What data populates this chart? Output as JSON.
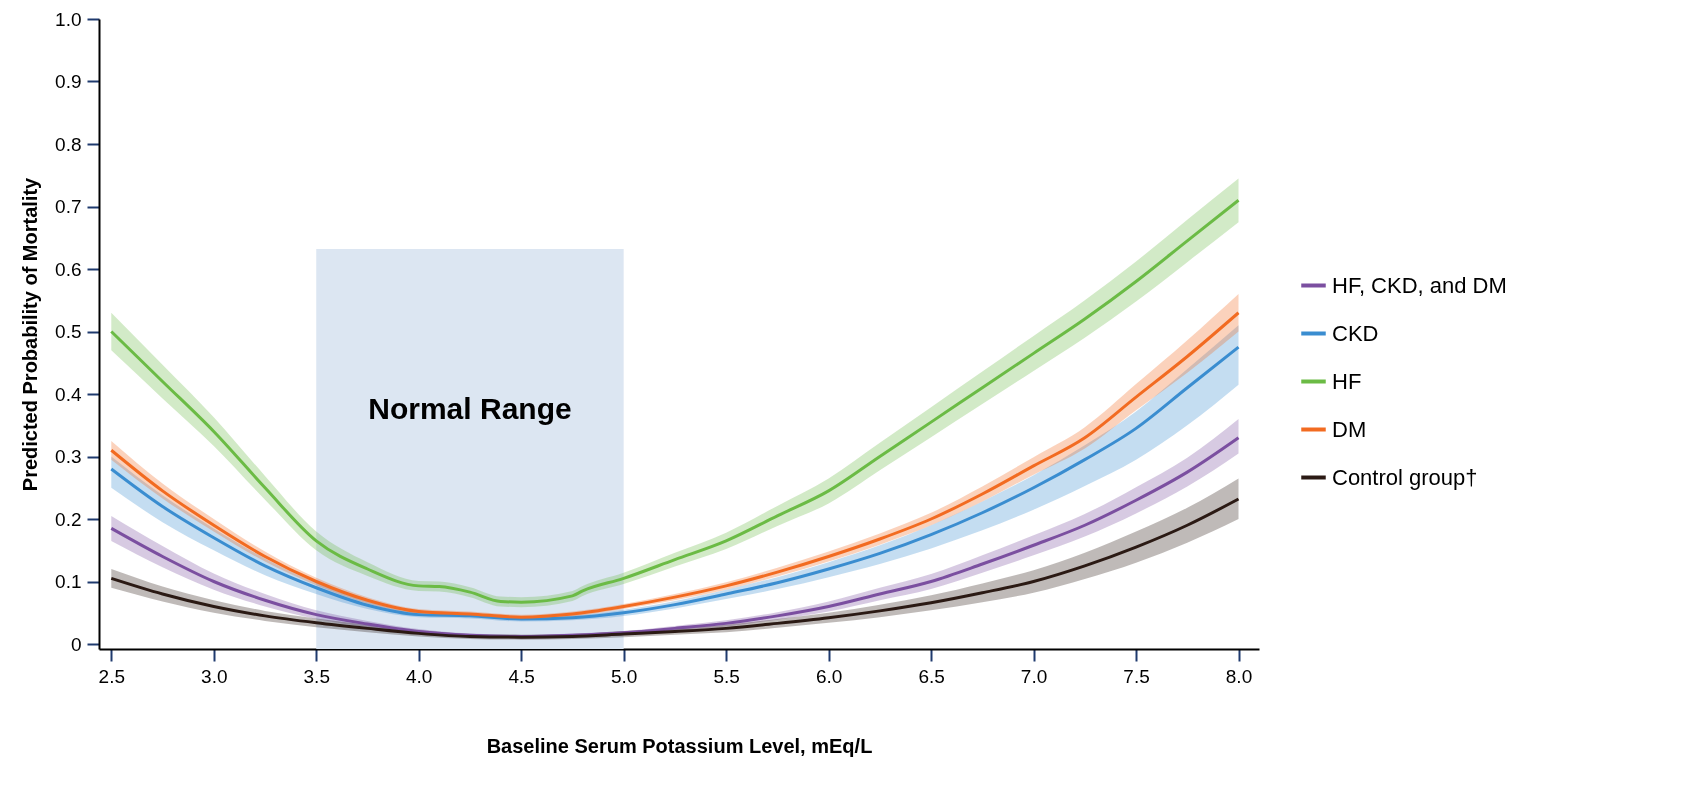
{
  "chart_data": {
    "type": "line",
    "xlabel": "Baseline Serum Potassium Level, mEq/L",
    "ylabel": "Predicted Probability of Mortality",
    "xlim": [
      2.44,
      8.1
    ],
    "ylim": [
      -0.008,
      1.0
    ],
    "xticks": [
      2.5,
      {
        "value": 3,
        "label": "3.0"
      },
      3.5,
      {
        "value": 4,
        "label": "4.0"
      },
      4.5,
      {
        "value": 5,
        "label": "5.0"
      },
      5.5,
      {
        "value": 6,
        "label": "6.0"
      },
      6.5,
      {
        "value": 7,
        "label": "7.0"
      },
      7.5,
      {
        "value": 8,
        "label": "8.0"
      }
    ],
    "yticks": [
      0,
      0.1,
      0.2,
      0.3,
      0.4,
      0.5,
      0.6,
      0.7,
      0.8,
      0.9,
      {
        "value": 1,
        "label": "1.0"
      }
    ],
    "x": [
      2.5,
      2.75,
      3.0,
      3.25,
      3.5,
      3.75,
      4.0,
      4.25,
      4.5,
      4.75,
      5.0,
      5.25,
      5.5,
      5.75,
      6.0,
      6.25,
      6.5,
      6.75,
      7.0,
      7.25,
      7.5,
      7.75,
      8.0
    ],
    "legend": "right",
    "bands": [
      {
        "axis": "x",
        "from": 3.5,
        "to": 5.0,
        "label": "Normal Range",
        "color": "#dce6f2"
      }
    ],
    "series": [
      {
        "name": "HF, CKD, and DM",
        "color": "#7b4fa0",
        "values": [
          0.185,
          0.14,
          0.1,
          0.07,
          0.047,
          0.032,
          0.02,
          0.014,
          0.012,
          0.014,
          0.018,
          0.025,
          0.033,
          0.045,
          0.06,
          0.08,
          0.1,
          0.128,
          0.158,
          0.19,
          0.23,
          0.275,
          0.33
        ],
        "lower": [
          0.165,
          0.123,
          0.087,
          0.06,
          0.04,
          0.027,
          0.016,
          0.011,
          0.009,
          0.011,
          0.015,
          0.021,
          0.028,
          0.039,
          0.052,
          0.07,
          0.088,
          0.114,
          0.142,
          0.172,
          0.209,
          0.252,
          0.305
        ],
        "upper": [
          0.205,
          0.157,
          0.113,
          0.08,
          0.054,
          0.037,
          0.024,
          0.017,
          0.015,
          0.017,
          0.021,
          0.029,
          0.038,
          0.051,
          0.068,
          0.09,
          0.112,
          0.142,
          0.174,
          0.208,
          0.251,
          0.298,
          0.36
        ]
      },
      {
        "name": "CKD",
        "color": "#3a8dd0",
        "values": [
          0.28,
          0.22,
          0.17,
          0.125,
          0.09,
          0.062,
          0.047,
          0.045,
          0.04,
          0.042,
          0.05,
          0.063,
          0.08,
          0.098,
          0.12,
          0.145,
          0.175,
          0.21,
          0.25,
          0.295,
          0.345,
          0.41,
          0.475
        ],
        "lower": [
          0.25,
          0.195,
          0.15,
          0.11,
          0.08,
          0.056,
          0.043,
          0.041,
          0.036,
          0.038,
          0.045,
          0.057,
          0.072,
          0.088,
          0.107,
          0.128,
          0.153,
          0.182,
          0.215,
          0.253,
          0.295,
          0.35,
          0.415
        ],
        "upper": [
          0.3,
          0.238,
          0.185,
          0.137,
          0.098,
          0.068,
          0.051,
          0.049,
          0.044,
          0.046,
          0.055,
          0.069,
          0.087,
          0.107,
          0.131,
          0.158,
          0.19,
          0.228,
          0.27,
          0.318,
          0.372,
          0.44,
          0.51
        ]
      },
      {
        "name": "HF",
        "color": "#6bbb45",
        "x": [
          2.5,
          2.75,
          3.0,
          3.25,
          3.5,
          3.75,
          4.0,
          4.1,
          4.25,
          4.4,
          4.5,
          4.75,
          4.8,
          5.0,
          5.25,
          5.5,
          5.75,
          6.0,
          6.25,
          6.5,
          6.75,
          7.0,
          7.25,
          7.5,
          7.75,
          8.0
        ],
        "values": [
          0.5,
          0.42,
          0.34,
          0.25,
          0.165,
          0.12,
          0.093,
          0.092,
          0.083,
          0.068,
          0.067,
          0.077,
          0.085,
          0.105,
          0.135,
          0.165,
          0.205,
          0.245,
          0.3,
          0.355,
          0.41,
          0.465,
          0.52,
          0.58,
          0.645,
          0.71
        ],
        "lower": [
          0.47,
          0.393,
          0.317,
          0.231,
          0.15,
          0.109,
          0.085,
          0.084,
          0.075,
          0.06,
          0.059,
          0.069,
          0.077,
          0.096,
          0.124,
          0.152,
          0.189,
          0.225,
          0.278,
          0.331,
          0.384,
          0.437,
          0.49,
          0.548,
          0.611,
          0.675
        ],
        "upper": [
          0.53,
          0.447,
          0.363,
          0.269,
          0.18,
          0.131,
          0.101,
          0.1,
          0.091,
          0.076,
          0.075,
          0.085,
          0.093,
          0.114,
          0.146,
          0.178,
          0.221,
          0.265,
          0.322,
          0.379,
          0.436,
          0.493,
          0.55,
          0.612,
          0.679,
          0.745
        ]
      },
      {
        "name": "DM",
        "color": "#f26b21",
        "values": [
          0.31,
          0.245,
          0.19,
          0.14,
          0.1,
          0.07,
          0.052,
          0.048,
          0.043,
          0.048,
          0.06,
          0.075,
          0.093,
          0.115,
          0.14,
          0.168,
          0.2,
          0.24,
          0.285,
          0.33,
          0.395,
          0.46,
          0.53
        ],
        "lower": [
          0.295,
          0.233,
          0.18,
          0.132,
          0.094,
          0.065,
          0.048,
          0.044,
          0.039,
          0.044,
          0.056,
          0.07,
          0.087,
          0.108,
          0.132,
          0.159,
          0.19,
          0.228,
          0.271,
          0.313,
          0.374,
          0.434,
          0.5
        ],
        "upper": [
          0.325,
          0.257,
          0.2,
          0.148,
          0.106,
          0.075,
          0.056,
          0.052,
          0.047,
          0.052,
          0.064,
          0.08,
          0.099,
          0.122,
          0.148,
          0.177,
          0.21,
          0.252,
          0.299,
          0.347,
          0.416,
          0.486,
          0.56
        ]
      },
      {
        "name": "Control group†",
        "color": "#2b1a14",
        "values": [
          0.105,
          0.08,
          0.06,
          0.045,
          0.034,
          0.025,
          0.017,
          0.012,
          0.011,
          0.012,
          0.016,
          0.02,
          0.025,
          0.033,
          0.042,
          0.053,
          0.066,
          0.082,
          0.1,
          0.125,
          0.155,
          0.19,
          0.232
        ],
        "lower": [
          0.09,
          0.068,
          0.05,
          0.037,
          0.027,
          0.019,
          0.012,
          0.008,
          0.007,
          0.008,
          0.011,
          0.015,
          0.019,
          0.026,
          0.034,
          0.043,
          0.054,
          0.067,
          0.082,
          0.104,
          0.13,
          0.162,
          0.2
        ],
        "upper": [
          0.12,
          0.092,
          0.07,
          0.053,
          0.041,
          0.031,
          0.022,
          0.016,
          0.015,
          0.016,
          0.021,
          0.025,
          0.031,
          0.04,
          0.05,
          0.063,
          0.078,
          0.097,
          0.118,
          0.146,
          0.18,
          0.218,
          0.265
        ]
      }
    ]
  }
}
